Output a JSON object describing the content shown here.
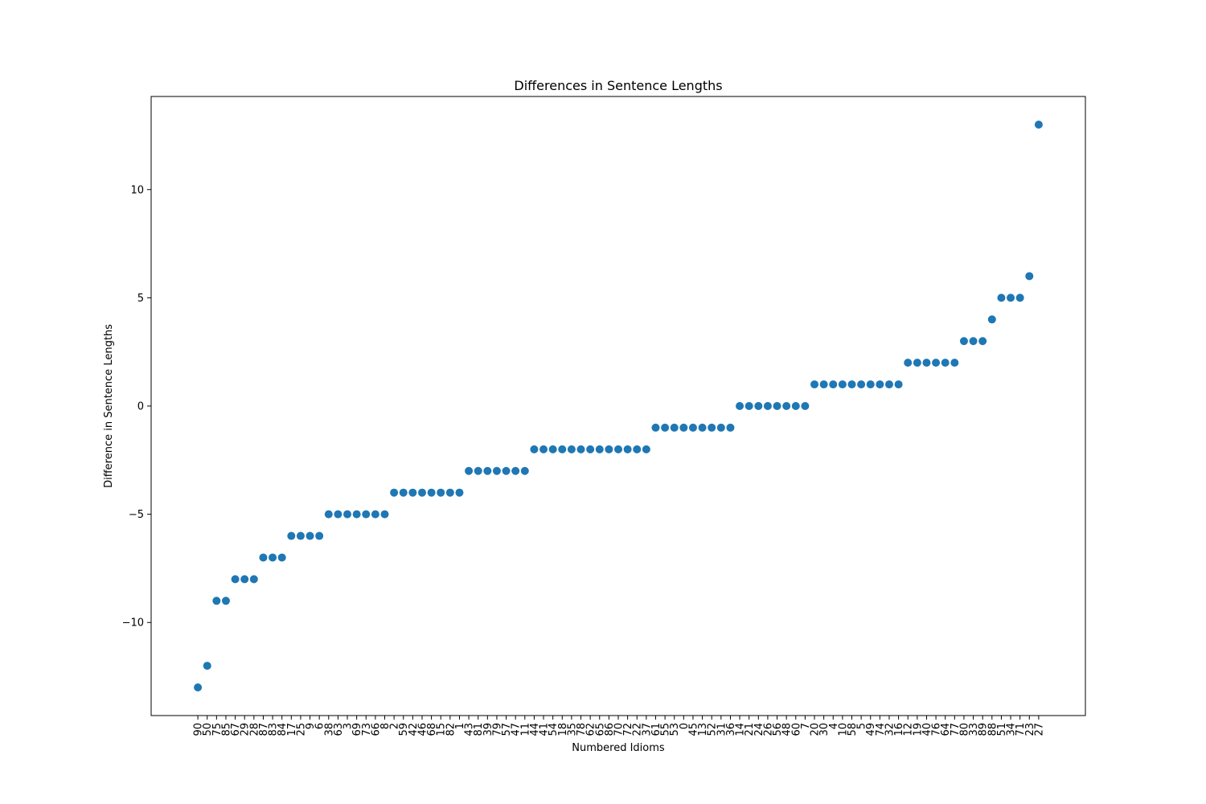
{
  "chart_data": {
    "type": "scatter",
    "title": "Differences in Sentence Lengths",
    "xlabel": "Numbered Idioms",
    "ylabel": "Difference in Sentence Lengths",
    "categories": [
      "90",
      "50",
      "75",
      "85",
      "67",
      "29",
      "28",
      "87",
      "83",
      "84",
      "17",
      "25",
      "9",
      "6",
      "38",
      "63",
      "3",
      "69",
      "73",
      "66",
      "8",
      "2",
      "59",
      "42",
      "46",
      "68",
      "15",
      "82",
      "1",
      "43",
      "81",
      "39",
      "79",
      "57",
      "47",
      "11",
      "44",
      "41",
      "54",
      "18",
      "35",
      "78",
      "62",
      "65",
      "86",
      "70",
      "72",
      "22",
      "37",
      "61",
      "55",
      "53",
      "0",
      "45",
      "13",
      "52",
      "31",
      "36",
      "14",
      "21",
      "24",
      "26",
      "56",
      "48",
      "60",
      "7",
      "20",
      "30",
      "4",
      "10",
      "58",
      "5",
      "49",
      "74",
      "32",
      "16",
      "12",
      "19",
      "40",
      "76",
      "64",
      "77",
      "80",
      "33",
      "89",
      "88",
      "51",
      "34",
      "71",
      "23",
      "27"
    ],
    "values": [
      -13,
      -12,
      -9,
      -9,
      -8,
      -8,
      -8,
      -7,
      -7,
      -7,
      -6,
      -6,
      -6,
      -6,
      -5,
      -5,
      -5,
      -5,
      -5,
      -5,
      -5,
      -4,
      -4,
      -4,
      -4,
      -4,
      -4,
      -4,
      -4,
      -3,
      -3,
      -3,
      -3,
      -3,
      -3,
      -3,
      -2,
      -2,
      -2,
      -2,
      -2,
      -2,
      -2,
      -2,
      -2,
      -2,
      -2,
      -2,
      -2,
      -1,
      -1,
      -1,
      -1,
      -1,
      -1,
      -1,
      -1,
      -1,
      0,
      0,
      0,
      0,
      0,
      0,
      0,
      0,
      1,
      1,
      1,
      1,
      1,
      1,
      1,
      1,
      1,
      1,
      2,
      2,
      2,
      2,
      2,
      2,
      3,
      3,
      3,
      4,
      5,
      5,
      5,
      6,
      13
    ],
    "yticks": [
      -10,
      -5,
      0,
      5,
      10
    ],
    "ytick_labels": [
      "−10",
      "−5",
      "0",
      "5",
      "10"
    ],
    "ylim": [
      -14.3,
      14.3
    ],
    "grid": false,
    "marker_color": "#1f77b4"
  }
}
